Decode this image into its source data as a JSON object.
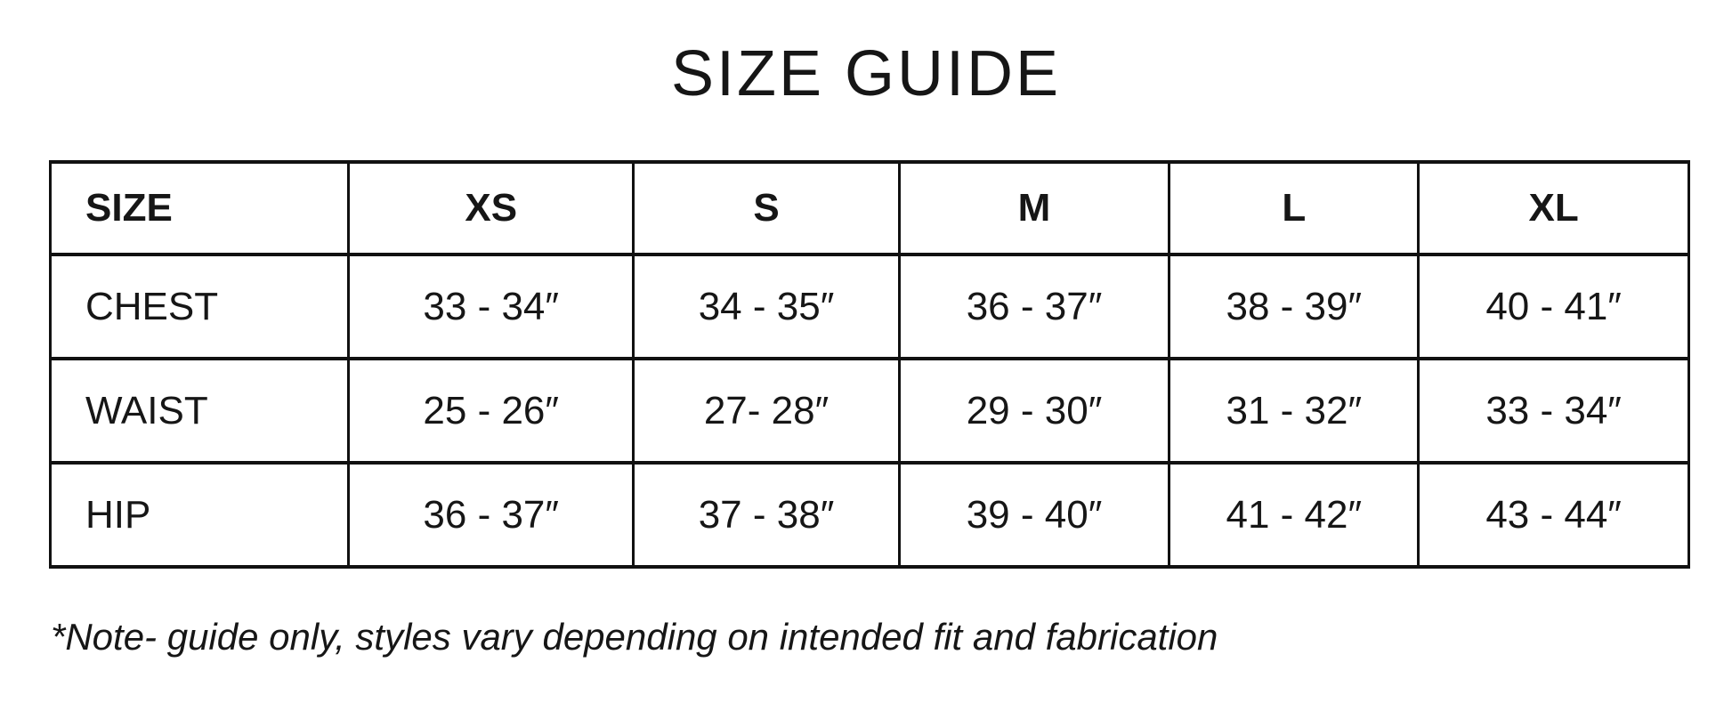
{
  "title": "SIZE GUIDE",
  "table": {
    "columns": [
      "SIZE",
      "XS",
      "S",
      "M",
      "L",
      "XL"
    ],
    "rows": [
      {
        "label": "CHEST",
        "values": [
          "33 - 34″",
          "34 - 35″",
          "36 - 37″",
          "38 - 39″",
          "40 - 41″"
        ]
      },
      {
        "label": "WAIST",
        "values": [
          "25 - 26″",
          "27- 28″",
          "29 - 30″",
          "31 - 32″",
          "33 - 34″"
        ]
      },
      {
        "label": "HIP",
        "values": [
          "36 - 37″",
          "37 - 38″",
          "39 - 40″",
          "41 - 42″",
          "43 - 44″"
        ]
      }
    ]
  },
  "note": "*Note- guide only, styles vary depending on intended fit and fabrication",
  "colors": {
    "text": "#161616",
    "border": "#111111",
    "background": "#ffffff"
  }
}
